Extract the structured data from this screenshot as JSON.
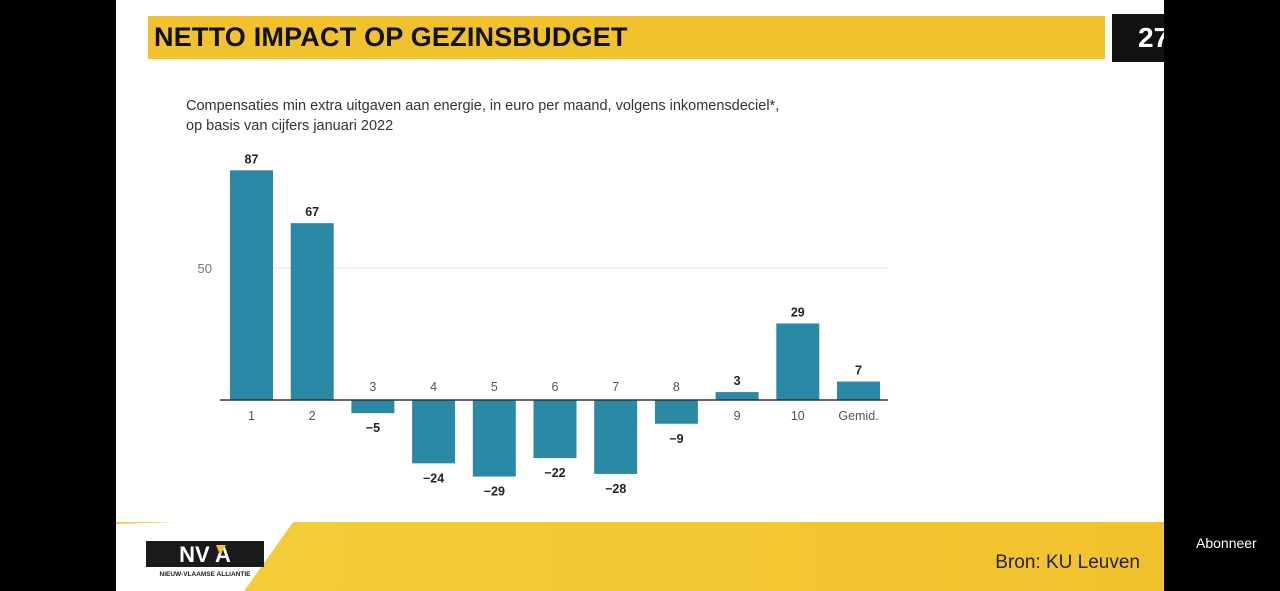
{
  "slide": {
    "title": "NETTO IMPACT OP GEZINSBUDGET",
    "page_number": "27",
    "subtitle_line1": "Compensaties min extra uitgaven aan energie, in euro per maand, volgens inkomensdeciel*,",
    "subtitle_line2": "op basis van cijfers januari 2022",
    "source": "Bron: KU Leuven",
    "logo_text": "NV A",
    "logo_subtext": "NIEUW-VLAAMSE ALLIANTIE"
  },
  "overlay": {
    "subscribe_label": "Abonneer"
  },
  "colors": {
    "bar": "#2a8aa6",
    "accent": "#f2c12e",
    "grid": "#e2e2e2"
  },
  "chart_data": {
    "type": "bar",
    "categories": [
      "1",
      "2",
      "3",
      "4",
      "5",
      "6",
      "7",
      "8",
      "9",
      "10",
      "Gemid."
    ],
    "values": [
      87,
      67,
      -5,
      -24,
      -29,
      -22,
      -28,
      -9,
      3,
      29,
      7
    ],
    "value_labels": [
      "87",
      "67",
      "−5",
      "−24",
      "−29",
      "−22",
      "−28",
      "−9",
      "3",
      "29",
      "7"
    ],
    "yticks": [
      50
    ],
    "ylim": [
      -30,
      90
    ],
    "grid": true,
    "xlabel": "",
    "ylabel": ""
  }
}
